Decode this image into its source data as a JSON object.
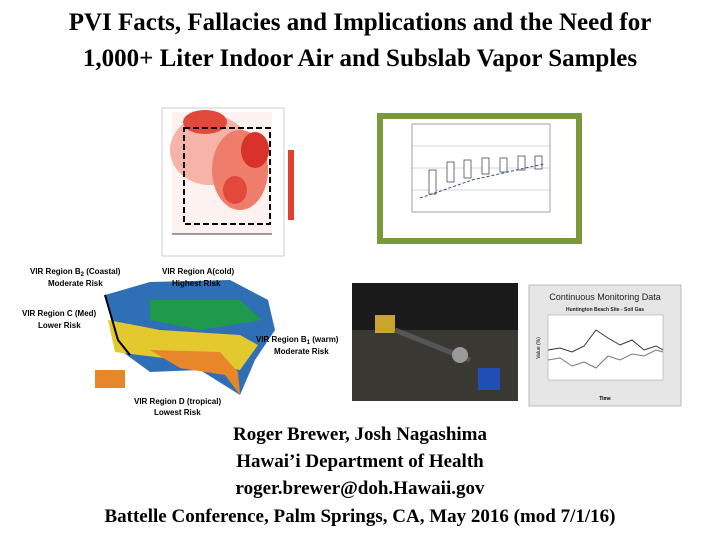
{
  "title": {
    "line1": "PVI Facts, Fallacies and Implications and the Need for",
    "line2": "1,000+ Liter Indoor Air and Subslab Vapor Samples"
  },
  "map_labels": [
    {
      "prefix": "VIR Region B",
      "sub": "2",
      "suffix": " (Coastal)",
      "risk": "Moderate Risk"
    },
    {
      "prefix": "VIR Region A(cold)",
      "sub": "",
      "suffix": "",
      "risk": "Highest Risk"
    },
    {
      "prefix": "VIR Region C (Med)",
      "sub": "",
      "suffix": "",
      "risk": "Lower Risk"
    },
    {
      "prefix": "VIR Region B",
      "sub": "1",
      "suffix": " (warm)",
      "risk": "Moderate Risk"
    },
    {
      "prefix": "VIR Region D (tropical)",
      "sub": "",
      "suffix": "",
      "risk": "Lowest Risk"
    }
  ],
  "monitoring_chart": {
    "title": "Continuous Monitoring Data",
    "subtitle": "Huntington Beach Site - Soil Gas",
    "x_label": "Time",
    "y_label": "Value (%)"
  },
  "footer": {
    "authors": "Roger Brewer, Josh Nagashima",
    "organization": "Hawai’i Department of Health",
    "email": "roger.brewer@doh.Hawaii.gov",
    "event": "Battelle Conference, Palm Springs, CA, May 2016 (mod 7/1/16)"
  }
}
